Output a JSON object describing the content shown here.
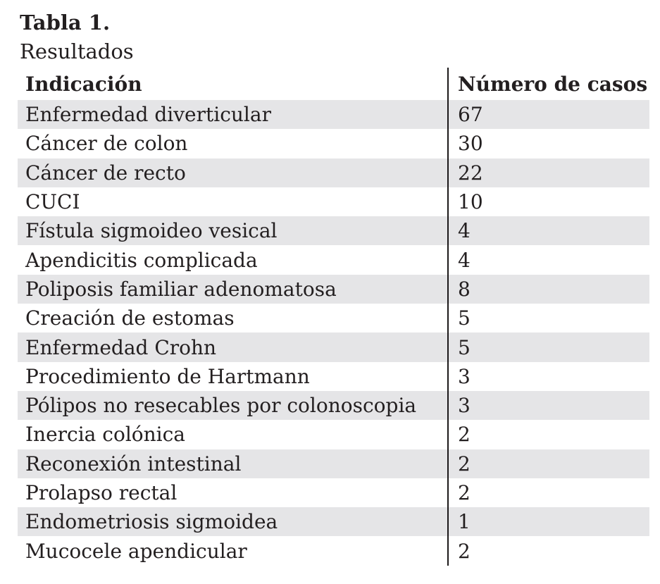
{
  "title": "Tabla 1.",
  "subtitle": "Resultados",
  "table": {
    "header": {
      "indication": "Indicación",
      "cases": "Número de casos"
    },
    "rows": [
      {
        "indication": "Enfermedad diverticular",
        "cases": "67"
      },
      {
        "indication": "Cáncer de colon",
        "cases": "30"
      },
      {
        "indication": "Cáncer de recto",
        "cases": "22"
      },
      {
        "indication": "CUCI",
        "cases": "10"
      },
      {
        "indication": "Fístula sigmoideo vesical",
        "cases": "4"
      },
      {
        "indication": "Apendicitis complicada",
        "cases": "4"
      },
      {
        "indication": "Poliposis familiar adenomatosa",
        "cases": "8"
      },
      {
        "indication": "Creación de estomas",
        "cases": "5"
      },
      {
        "indication": "Enfermedad Crohn",
        "cases": "5"
      },
      {
        "indication": "Procedimiento de Hartmann",
        "cases": "3"
      },
      {
        "indication": "Pólipos no resecables por colonoscopia",
        "cases": "3"
      },
      {
        "indication": "Inercia colónica",
        "cases": "2"
      },
      {
        "indication": "Reconexión intestinal",
        "cases": "2"
      },
      {
        "indication": "Prolapso rectal",
        "cases": "2"
      },
      {
        "indication": "Endometriosis sigmoidea",
        "cases": "1"
      },
      {
        "indication": "Mucocele apendicular",
        "cases": "2"
      }
    ]
  },
  "colors": {
    "stripe": "#e5e5e7",
    "text": "#231f20",
    "divider": "#1c191a",
    "background": "#ffffff"
  },
  "chart_data": {
    "type": "table",
    "title": "Tabla 1.",
    "subtitle": "Resultados",
    "columns": [
      "Indicación",
      "Número de casos"
    ],
    "categories": [
      "Enfermedad diverticular",
      "Cáncer de colon",
      "Cáncer de recto",
      "CUCI",
      "Fístula sigmoideo vesical",
      "Apendicitis complicada",
      "Poliposis familiar adenomatosa",
      "Creación de estomas",
      "Enfermedad Crohn",
      "Procedimiento de Hartmann",
      "Pólipos no resecables por colonoscopia",
      "Inercia colónica",
      "Reconexión intestinal",
      "Prolapso rectal",
      "Endometriosis sigmoidea",
      "Mucocele apendicular"
    ],
    "values": [
      67,
      30,
      22,
      10,
      4,
      4,
      8,
      5,
      5,
      3,
      3,
      2,
      2,
      2,
      1,
      2
    ],
    "layout_hints": {
      "striped_rows": "odd rows shaded",
      "column_divider": "vertical rule between columns",
      "grid": "off"
    }
  }
}
